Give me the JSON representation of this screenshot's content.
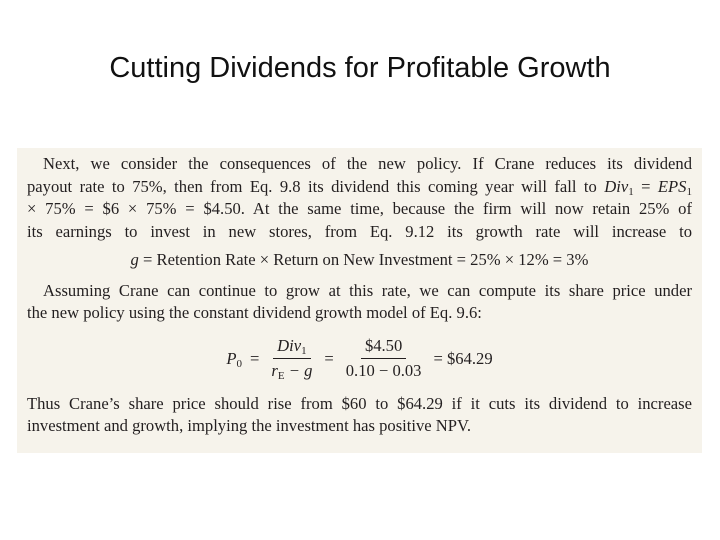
{
  "title": "Cutting Dividends for Profitable Growth",
  "excerpt": {
    "line_1": "Next, we consider the consequences of the new policy. If Crane reduces its dividend",
    "line_2": [
      "payout rate to 75%, then from Eq. 9.8 its dividend this coming year will fall to",
      "Div",
      "1",
      "=",
      "EPS",
      "1"
    ],
    "line_3": "× 75% = $6 × 75% = $4.50. At the same time, because the firm will now retain 25% of",
    "line_4": "its earnings to invest in new stores, from Eq. 9.12 its growth rate will increase to",
    "equation_1": [
      "g",
      "= Retention Rate × Return on New Investment = 25% × 12% = 3%"
    ],
    "line_5": "Assuming Crane can continue to grow at this rate, we can compute its share price under",
    "line_6": "the new policy using the constant dividend growth model of Eq. 9.6:",
    "equation_2": {
      "lhs": [
        "P",
        "0"
      ],
      "eq_1": "=",
      "frac_1_num": [
        "Div",
        "1"
      ],
      "frac_1_den": [
        "r",
        "E",
        "− g"
      ],
      "eq_2": "=",
      "frac_2_num": "$4.50",
      "frac_2_den": "0.10 − 0.03",
      "result": "= $64.29"
    },
    "line_7": "Thus Crane’s share price should rise from $60 to $64.29 if it cuts its dividend to increase",
    "line_8": "investment and growth, implying the investment has positive NPV."
  }
}
